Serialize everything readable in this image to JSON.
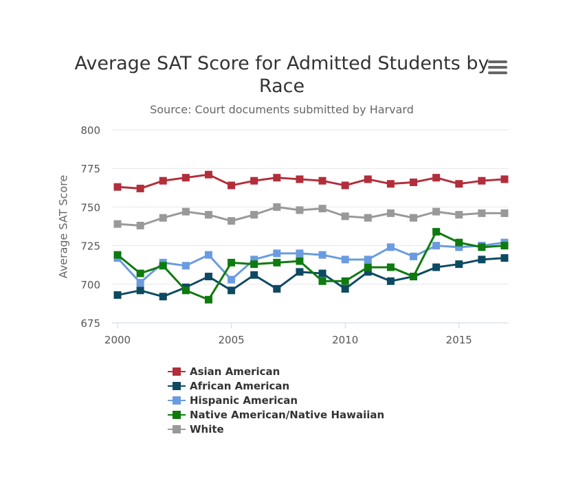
{
  "header": {
    "title": "Average SAT Score for Admitted Students by Race",
    "subtitle": "Source: Court documents submitted by Harvard",
    "menu_icon": "hamburger-menu-icon"
  },
  "chart_data": {
    "type": "line",
    "title": "Average SAT Score for Admitted Students by Race",
    "subtitle": "Source: Court documents submitted by Harvard",
    "xlabel": "",
    "ylabel": "Average SAT Score",
    "x": [
      2000,
      2001,
      2002,
      2003,
      2004,
      2005,
      2006,
      2007,
      2008,
      2009,
      2010,
      2011,
      2012,
      2013,
      2014,
      2015,
      2016,
      2017
    ],
    "xlim": [
      2000,
      2017
    ],
    "ylim": [
      675,
      800
    ],
    "x_ticks": [
      2000,
      2005,
      2010,
      2015
    ],
    "y_ticks": [
      675,
      700,
      725,
      750,
      775,
      800
    ],
    "grid": "horizontal",
    "legend_position": "bottom",
    "series": [
      {
        "name": "Asian American",
        "color": "#b22e3a",
        "values": [
          763,
          762,
          767,
          769,
          771,
          764,
          767,
          769,
          768,
          767,
          764,
          768,
          765,
          766,
          769,
          765,
          767,
          768
        ]
      },
      {
        "name": "African American",
        "color": "#0d4a62",
        "values": [
          693,
          696,
          692,
          698,
          705,
          696,
          706,
          697,
          708,
          707,
          697,
          708,
          702,
          705,
          711,
          713,
          716,
          717
        ]
      },
      {
        "name": "Hispanic American",
        "color": "#6a9be0",
        "values": [
          717,
          701,
          714,
          712,
          719,
          703,
          716,
          720,
          720,
          719,
          716,
          716,
          724,
          718,
          725,
          724,
          725,
          727
        ]
      },
      {
        "name": "Native American/Native Hawaiian",
        "color": "#0f7a0f",
        "values": [
          719,
          707,
          712,
          696,
          690,
          714,
          713,
          714,
          715,
          702,
          702,
          711,
          711,
          705,
          734,
          727,
          724,
          725
        ]
      },
      {
        "name": "White",
        "color": "#999999",
        "values": [
          739,
          738,
          743,
          747,
          745,
          741,
          745,
          750,
          748,
          749,
          744,
          743,
          746,
          743,
          747,
          745,
          746,
          746
        ]
      }
    ]
  }
}
